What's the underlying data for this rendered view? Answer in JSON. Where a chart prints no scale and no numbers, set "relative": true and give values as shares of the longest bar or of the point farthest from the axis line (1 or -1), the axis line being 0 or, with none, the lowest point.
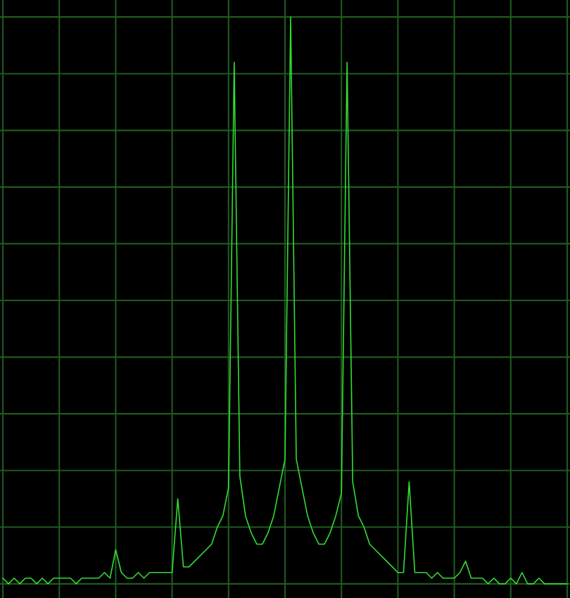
{
  "chart_data": {
    "type": "line",
    "relative": true,
    "grid": true,
    "tick_labels": false,
    "categories": [
      null,
      null,
      null,
      null,
      null,
      null,
      null,
      null,
      null,
      null,
      null,
      null,
      null,
      null,
      null,
      null,
      null,
      null,
      null,
      null,
      null,
      null,
      null,
      null,
      null,
      null,
      null,
      null,
      null,
      null,
      null,
      null,
      null,
      null,
      null,
      null,
      null,
      null,
      null,
      null,
      null,
      null,
      null,
      null,
      null,
      null,
      null,
      null,
      null,
      null,
      null,
      null,
      null,
      null,
      null,
      null,
      null,
      null,
      null,
      null,
      null,
      null,
      null,
      null,
      null,
      null,
      null,
      null,
      null,
      null,
      null,
      null,
      null,
      null,
      null,
      null,
      null,
      null,
      null,
      null,
      null,
      null,
      null,
      null,
      null,
      null,
      null,
      null,
      null,
      null,
      null,
      null,
      null,
      null,
      null,
      null,
      null,
      null,
      null,
      null,
      null
    ],
    "series": [
      {
        "color": "#33dd33",
        "values": [
          0.01,
          0,
          0.01,
          0,
          0.01,
          0.01,
          0,
          0.01,
          0,
          0.01,
          0.01,
          0.01,
          0.01,
          0,
          0.01,
          0.01,
          0.01,
          0.01,
          0.02,
          0.01,
          0.06,
          0.02,
          0.01,
          0.01,
          0.02,
          0.01,
          0.02,
          0.02,
          0.02,
          0.02,
          0.02,
          0.15,
          0.03,
          0.03,
          0.04,
          0.05,
          0.06,
          0.07,
          0.1,
          0.12,
          0.17,
          0.92,
          0.19,
          0.12,
          0.09,
          0.07,
          0.07,
          0.09,
          0.12,
          0.17,
          0.22,
          1.0,
          0.22,
          0.17,
          0.12,
          0.09,
          0.07,
          0.07,
          0.09,
          0.12,
          0.16,
          0.92,
          0.18,
          0.12,
          0.1,
          0.07,
          0.06,
          0.05,
          0.04,
          0.03,
          0.02,
          0.02,
          0.18,
          0.02,
          0.02,
          0.02,
          0.01,
          0.02,
          0.01,
          0.01,
          0.01,
          0.02,
          0.04,
          0.01,
          0.01,
          0.01,
          0,
          0.01,
          0,
          0,
          0.01,
          0,
          0.02,
          0,
          0,
          0.01,
          0,
          0,
          0,
          0,
          0
        ]
      }
    ]
  }
}
